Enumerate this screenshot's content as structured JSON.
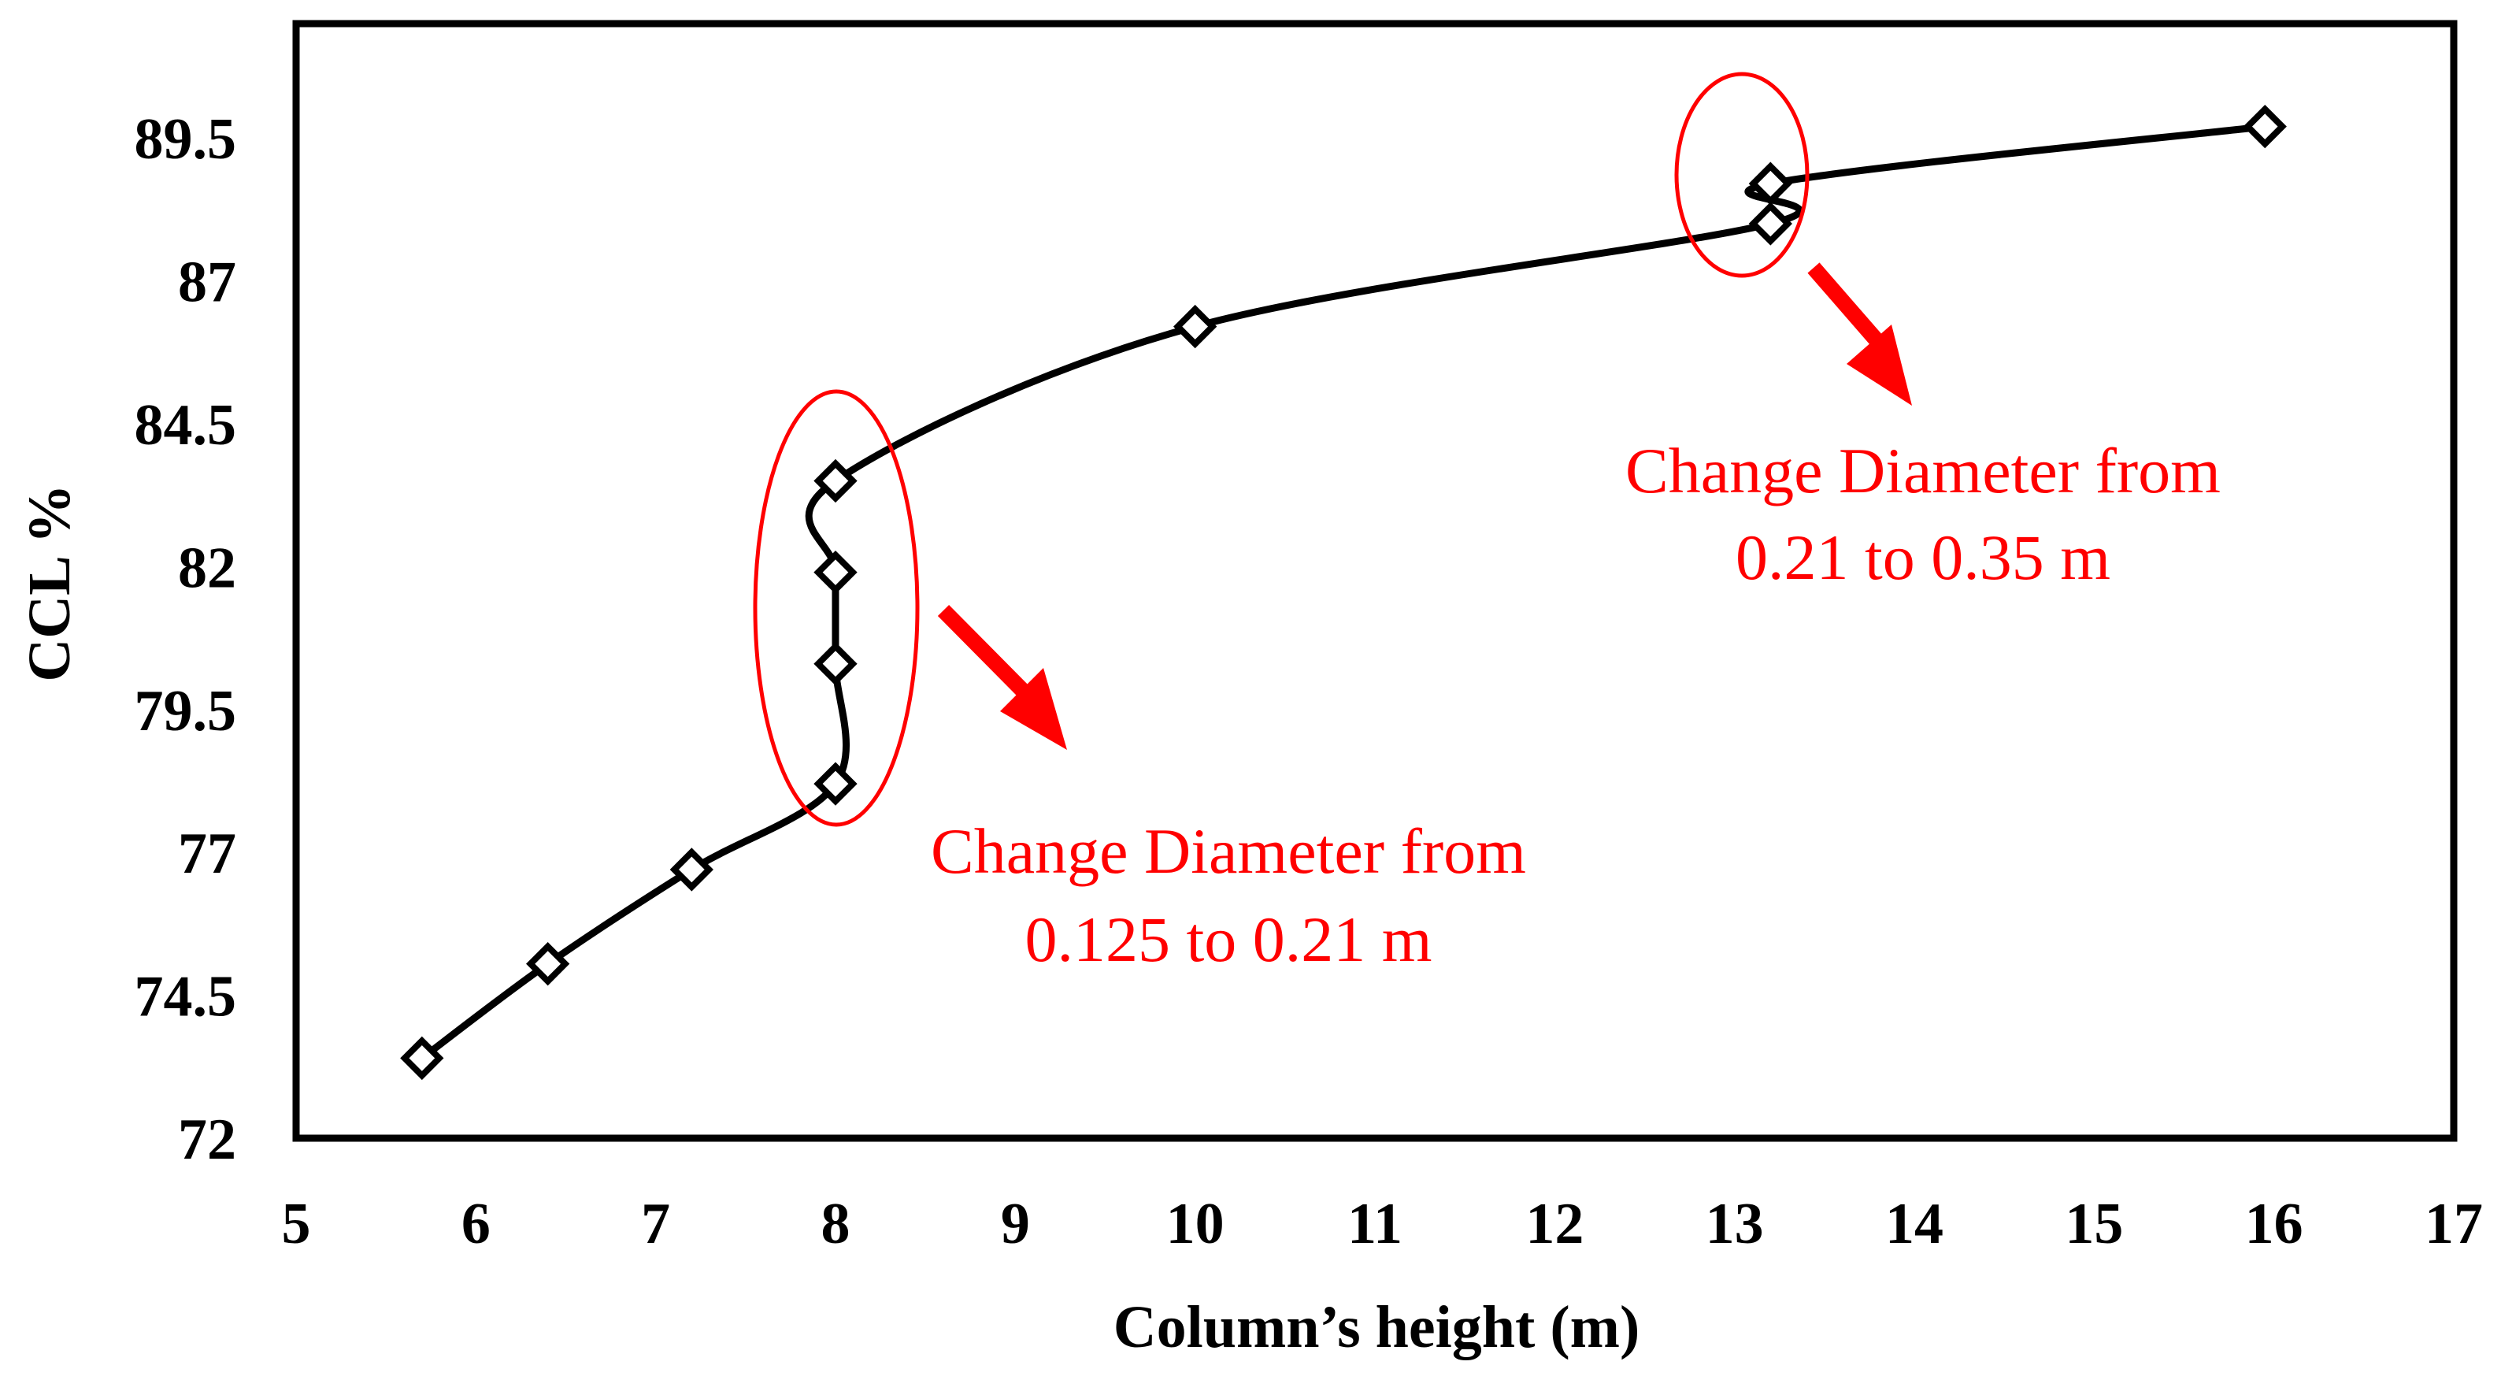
{
  "chart_data": {
    "type": "scatter",
    "title": "",
    "xlabel": "Column’s height (m)",
    "ylabel": "CCL %",
    "xlim": [
      5,
      17
    ],
    "ylim": [
      72,
      91.5
    ],
    "xticks": [
      5,
      6,
      7,
      8,
      9,
      10,
      11,
      12,
      13,
      14,
      15,
      16,
      17
    ],
    "yticks": [
      72,
      74.5,
      77,
      79.5,
      82,
      84.5,
      87,
      89.5
    ],
    "ytick_labels": [
      "72",
      "74.5",
      "77",
      "79.5",
      "82",
      "84.5",
      "87",
      "89.5"
    ],
    "grid": false,
    "legend": "none",
    "series": [
      {
        "name": "CCL",
        "marker": "diamond",
        "line": "smooth",
        "x": [
          5.7,
          6.4,
          7.2,
          8.0,
          8.0,
          8.0,
          8.0,
          10.0,
          13.2,
          13.2,
          15.95
        ],
        "y": [
          73.4,
          75.05,
          76.7,
          78.2,
          80.3,
          81.9,
          83.5,
          86.2,
          88.0,
          88.7,
          89.7
        ]
      }
    ],
    "annotations": [
      {
        "id": "lower",
        "lines": [
          "Change Diameter from",
          "0.125 to 0.21 m"
        ],
        "ellipse_around_x": 8.0,
        "ellipse_y_range": [
          78.2,
          83.5
        ],
        "color": "#ff0000"
      },
      {
        "id": "upper",
        "lines": [
          "Change Diameter from",
          "0.21 to 0.35 m"
        ],
        "ellipse_around_x": 13.2,
        "ellipse_y_range": [
          88.0,
          88.7
        ],
        "color": "#ff0000"
      }
    ]
  }
}
